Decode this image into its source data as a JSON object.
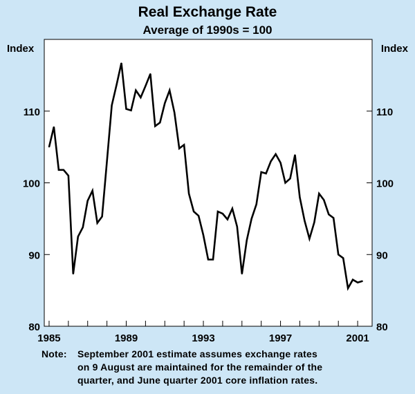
{
  "chart_data": {
    "type": "line",
    "title": "Real Exchange Rate",
    "subtitle": "Average of 1990s = 100",
    "ylabel_left": "Index",
    "ylabel_right": "Index",
    "ylim": [
      80,
      120
    ],
    "yticks": [
      80,
      90,
      100,
      110
    ],
    "xlim": [
      1984.75,
      2001.75
    ],
    "xticks": [
      1985,
      1989,
      1993,
      1997,
      2001
    ],
    "x_tick_labels": [
      "1985",
      "1989",
      "1993",
      "1997",
      "2001"
    ],
    "grid": false,
    "series": [
      {
        "name": "Real Exchange Rate",
        "x": [
          1985.0,
          1985.25,
          1985.5,
          1985.75,
          1986.0,
          1986.25,
          1986.5,
          1986.75,
          1987.0,
          1987.25,
          1987.5,
          1987.75,
          1988.0,
          1988.25,
          1988.5,
          1988.75,
          1989.0,
          1989.25,
          1989.5,
          1989.75,
          1990.0,
          1990.25,
          1990.5,
          1990.75,
          1991.0,
          1991.25,
          1991.5,
          1991.75,
          1992.0,
          1992.25,
          1992.5,
          1992.75,
          1993.0,
          1993.25,
          1993.5,
          1993.75,
          1994.0,
          1994.25,
          1994.5,
          1994.75,
          1995.0,
          1995.25,
          1995.5,
          1995.75,
          1996.0,
          1996.25,
          1996.5,
          1996.75,
          1997.0,
          1997.25,
          1997.5,
          1997.75,
          1998.0,
          1998.25,
          1998.5,
          1998.75,
          1999.0,
          1999.25,
          1999.5,
          1999.75,
          2000.0,
          2000.25,
          2000.5,
          2000.75,
          2001.0,
          2001.25
        ],
        "values": [
          105.0,
          107.8,
          101.8,
          101.8,
          101.0,
          87.3,
          92.5,
          93.8,
          97.5,
          98.9,
          94.4,
          95.3,
          103.0,
          110.8,
          113.7,
          116.7,
          110.3,
          110.1,
          112.9,
          111.9,
          113.5,
          115.2,
          107.9,
          108.4,
          111.1,
          112.9,
          109.8,
          104.8,
          105.3,
          98.5,
          96.0,
          95.4,
          92.7,
          89.3,
          89.3,
          96.0,
          95.7,
          94.9,
          96.4,
          93.9,
          87.3,
          92.0,
          95.0,
          97.0,
          101.5,
          101.3,
          103.0,
          104.0,
          102.8,
          100.0,
          100.6,
          103.9,
          98.0,
          94.7,
          92.2,
          94.5,
          98.5,
          97.6,
          95.6,
          95.1,
          90.0,
          89.5,
          85.3,
          86.5,
          86.1,
          86.3
        ]
      }
    ]
  },
  "note": {
    "label": "Note:",
    "lines": [
      "September 2001 estimate assumes exchange rates",
      "on 9 August are maintained for the remainder of the",
      "quarter, and June quarter 2001 core inflation rates."
    ]
  }
}
